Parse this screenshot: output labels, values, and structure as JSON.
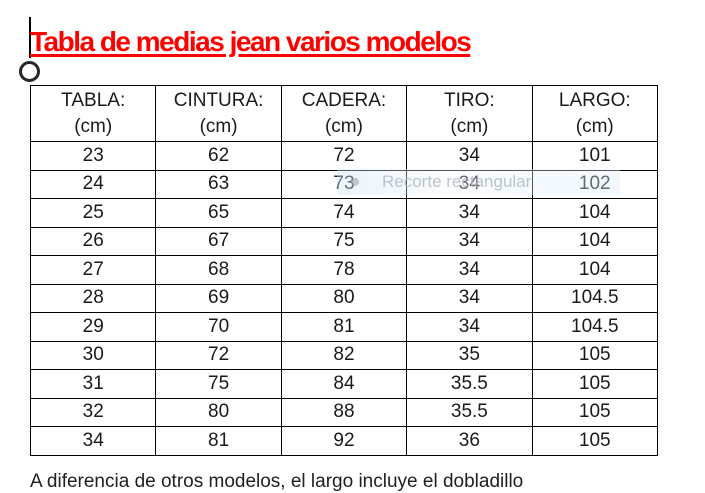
{
  "document": {
    "title": "Tabla de medias jean varios modelos",
    "title_color": "#ff0000",
    "footer_partial_text": "A diferencia de otros modelos, el largo incluye el dobladillo"
  },
  "clip_tooltip": {
    "label": "Recorte rectangular",
    "background": "#d8eaf7",
    "text_color": "#aab4c1"
  },
  "size_table": {
    "unit_note": "(cm)",
    "columns": [
      {
        "label": "TABLA:",
        "unit": "(cm)"
      },
      {
        "label": "CINTURA:",
        "unit": "(cm)"
      },
      {
        "label": "CADERA:",
        "unit": "(cm)"
      },
      {
        "label": "TIRO:",
        "unit": "(cm)"
      },
      {
        "label": "LARGO:",
        "unit": "(cm)"
      }
    ],
    "rows": [
      [
        "23",
        "62",
        "72",
        "34",
        "101"
      ],
      [
        "24",
        "63",
        "73",
        "34",
        "102"
      ],
      [
        "25",
        "65",
        "74",
        "34",
        "104"
      ],
      [
        "26",
        "67",
        "75",
        "34",
        "104"
      ],
      [
        "27",
        "68",
        "78",
        "34",
        "104"
      ],
      [
        "28",
        "69",
        "80",
        "34",
        "104.5"
      ],
      [
        "29",
        "70",
        "81",
        "34",
        "104.5"
      ],
      [
        "30",
        "72",
        "82",
        "35",
        "105"
      ],
      [
        "31",
        "75",
        "84",
        "35.5",
        "105"
      ],
      [
        "32",
        "80",
        "88",
        "35.5",
        "105"
      ],
      [
        "34",
        "81",
        "92",
        "36",
        "105"
      ]
    ]
  }
}
